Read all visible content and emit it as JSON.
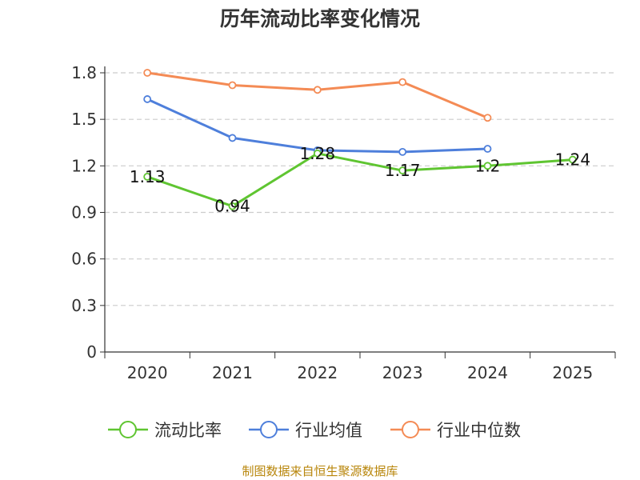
{
  "chart_data": {
    "type": "line",
    "title": "历年流动比率变化情况",
    "categories": [
      "2020",
      "2021",
      "2022",
      "2023",
      "2024",
      "2025"
    ],
    "y_ticks": [
      "0",
      "0.3",
      "0.6",
      "0.9",
      "1.2",
      "1.5",
      "1.8"
    ],
    "ylim": [
      0,
      1.8
    ],
    "grid": true,
    "legend_position": "bottom",
    "series": [
      {
        "name": "流动比率",
        "color": "#5fc531",
        "values": [
          1.13,
          0.94,
          1.28,
          1.17,
          1.2,
          1.24
        ],
        "labels": [
          "1.13",
          "0.94",
          "1.28",
          "1.17",
          "1.2",
          "1.24"
        ]
      },
      {
        "name": "行业均值",
        "color": "#4e7fdb",
        "values": [
          1.63,
          1.38,
          1.3,
          1.29,
          1.31,
          null
        ]
      },
      {
        "name": "行业中位数",
        "color": "#f48b55",
        "values": [
          1.8,
          1.72,
          1.69,
          1.74,
          1.51,
          null
        ]
      }
    ]
  },
  "source_text": "制图数据来自恒生聚源数据库"
}
